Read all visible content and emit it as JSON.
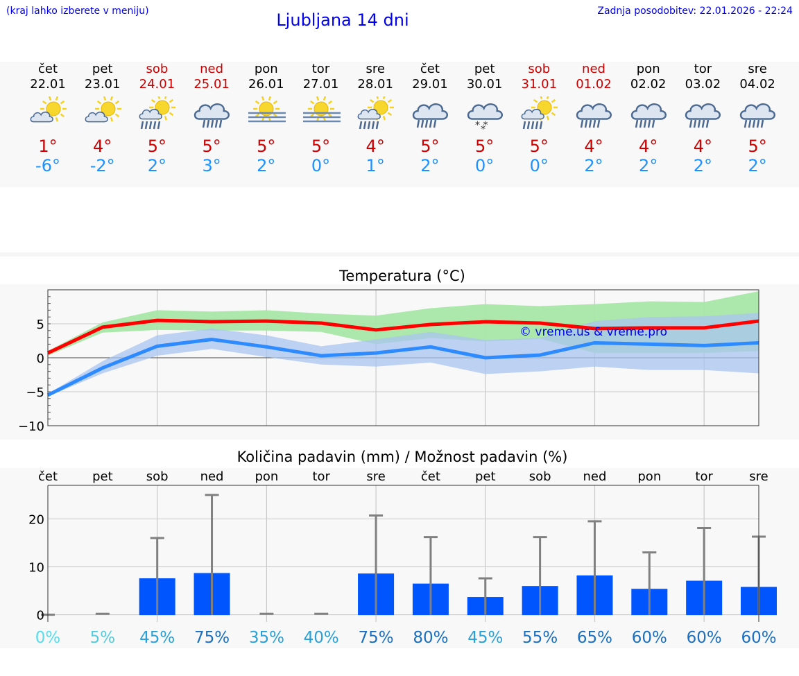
{
  "header": {
    "note": "(kraj lahko izberete v meniju)",
    "title": "Ljubljana 14 dni",
    "updated": "Zadnja posodobitev: 22.01.2026 - 22:24"
  },
  "days": [
    {
      "name": "čet",
      "date": "22.01",
      "weekend": false,
      "icon": "partly-cloudy-icon",
      "max": "1°",
      "min": "-6°"
    },
    {
      "name": "pet",
      "date": "23.01",
      "weekend": false,
      "icon": "partly-cloudy-icon",
      "max": "4°",
      "min": "-2°"
    },
    {
      "name": "sob",
      "date": "24.01",
      "weekend": true,
      "icon": "sun-cloud-rain-icon",
      "max": "5°",
      "min": "2°"
    },
    {
      "name": "ned",
      "date": "25.01",
      "weekend": true,
      "icon": "cloud-light-rain-icon",
      "max": "5°",
      "min": "3°"
    },
    {
      "name": "pon",
      "date": "26.01",
      "weekend": false,
      "icon": "sun-fog-icon",
      "max": "5°",
      "min": "2°"
    },
    {
      "name": "tor",
      "date": "27.01",
      "weekend": false,
      "icon": "sun-fog-icon",
      "max": "5°",
      "min": "0°"
    },
    {
      "name": "sre",
      "date": "28.01",
      "weekend": false,
      "icon": "sun-cloud-rain-icon",
      "max": "4°",
      "min": "1°"
    },
    {
      "name": "čet",
      "date": "29.01",
      "weekend": false,
      "icon": "cloud-rain-icon",
      "max": "5°",
      "min": "2°"
    },
    {
      "name": "pet",
      "date": "30.01",
      "weekend": false,
      "icon": "cloud-snow-icon",
      "max": "5°",
      "min": "0°"
    },
    {
      "name": "sob",
      "date": "31.01",
      "weekend": true,
      "icon": "sun-cloud-rain-icon",
      "max": "5°",
      "min": "0°"
    },
    {
      "name": "ned",
      "date": "01.02",
      "weekend": true,
      "icon": "cloud-rain-icon",
      "max": "4°",
      "min": "2°"
    },
    {
      "name": "pon",
      "date": "02.02",
      "weekend": false,
      "icon": "cloud-rain-icon",
      "max": "4°",
      "min": "2°"
    },
    {
      "name": "tor",
      "date": "03.02",
      "weekend": false,
      "icon": "cloud-rain-icon",
      "max": "4°",
      "min": "2°"
    },
    {
      "name": "sre",
      "date": "04.02",
      "weekend": false,
      "icon": "cloud-rain-icon",
      "max": "5°",
      "min": "2°"
    }
  ],
  "colors": {
    "max_line": "#ff0000",
    "max_band": "#a8e6a8",
    "min_line": "#2e8bff",
    "min_band": "#aac4f2",
    "bar": "#0055ff",
    "whisker": "#808080"
  },
  "chart_data": [
    {
      "type": "line",
      "title": "Temperatura (°C)",
      "x": [
        0,
        1,
        2,
        3,
        4,
        5,
        6,
        7,
        8,
        9,
        10,
        11,
        12,
        13
      ],
      "yticks": [
        "5",
        "0",
        "−5",
        "−10"
      ],
      "ytick_values": [
        5,
        0,
        -5,
        -10
      ],
      "ylim": [
        -10,
        10
      ],
      "series": [
        {
          "name": "max",
          "values": [
            0.7,
            4.5,
            5.5,
            5.3,
            5.4,
            5.1,
            4.1,
            4.9,
            5.3,
            5.1,
            4.3,
            4.4,
            4.4,
            5.4
          ]
        },
        {
          "name": "max_low",
          "values": [
            0.3,
            3.7,
            4.1,
            4.0,
            4.0,
            3.8,
            2.0,
            2.9,
            2.4,
            2.8,
            0.7,
            0.7,
            0.7,
            1.0
          ]
        },
        {
          "name": "max_high",
          "values": [
            1.0,
            5.2,
            7.0,
            6.8,
            7.0,
            6.5,
            6.2,
            7.3,
            7.9,
            7.6,
            7.9,
            8.3,
            8.2,
            9.8
          ]
        },
        {
          "name": "min",
          "values": [
            -5.5,
            -1.5,
            1.7,
            2.7,
            1.6,
            0.3,
            0.7,
            1.6,
            0.0,
            0.4,
            2.2,
            2.0,
            1.8,
            2.2
          ]
        },
        {
          "name": "min_low",
          "values": [
            -5.7,
            -2.3,
            0.3,
            1.3,
            0.1,
            -1.0,
            -1.3,
            -0.7,
            -2.4,
            -2.0,
            -1.3,
            -1.8,
            -1.8,
            -2.3
          ]
        },
        {
          "name": "min_high",
          "values": [
            -5.3,
            -0.5,
            3.3,
            4.3,
            3.3,
            1.7,
            2.7,
            3.8,
            2.6,
            2.9,
            5.4,
            6.0,
            6.1,
            6.6
          ]
        }
      ],
      "watermark": "© vreme.us & vreme.pro"
    },
    {
      "type": "bar",
      "title": "Količina padavin (mm) / Možnost padavin (%)",
      "categories": [
        "čet",
        "pet",
        "sob",
        "ned",
        "pon",
        "tor",
        "sre",
        "čet",
        "pet",
        "sob",
        "ned",
        "pon",
        "tor",
        "sre"
      ],
      "values": [
        0,
        0,
        7.6,
        8.7,
        0,
        0,
        8.6,
        6.5,
        3.7,
        6.0,
        8.2,
        5.4,
        7.1,
        5.8
      ],
      "whisker_high": [
        0,
        0.2,
        16,
        25,
        0.2,
        0.2,
        20.7,
        16.2,
        7.6,
        16.2,
        19.5,
        13.0,
        18.1,
        16.3
      ],
      "chance": [
        "0%",
        "5%",
        "45%",
        "75%",
        "35%",
        "40%",
        "75%",
        "80%",
        "45%",
        "55%",
        "65%",
        "60%",
        "60%",
        "60%"
      ],
      "chance_colors": [
        "#55ddee",
        "#55ccdd",
        "#2aa0d8",
        "#1a6fc0",
        "#2aa0d8",
        "#2aa0d8",
        "#1a6fc0",
        "#1a6fc0",
        "#2aa0d8",
        "#1a6fc0",
        "#1a6fc0",
        "#1a6fc0",
        "#1a6fc0",
        "#1a6fc0"
      ],
      "yticks": [
        "20",
        "10",
        "0"
      ],
      "ytick_values": [
        20,
        10,
        0
      ],
      "ylim": [
        -1.5,
        27
      ]
    }
  ]
}
